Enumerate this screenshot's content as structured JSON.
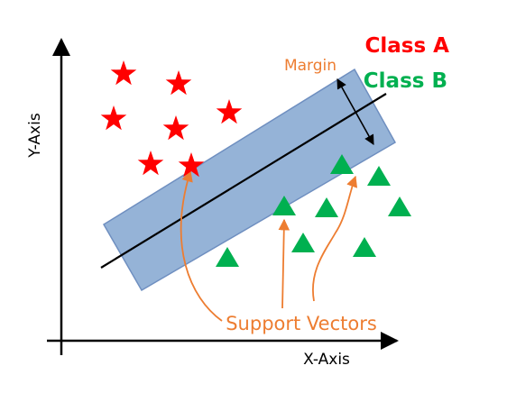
{
  "labels": {
    "y_axis": "Y-Axis",
    "x_axis": "X-Axis",
    "margin": "Margin",
    "class_a": "Class A",
    "class_b": "Class B",
    "support_vectors": "Support Vectors"
  },
  "colors": {
    "class_a": "#ff0000",
    "class_b": "#00b050",
    "margin_band": "#95b3d7",
    "margin_band_stroke": "#6f8fc0",
    "annotation": "#ed7d31",
    "axis": "#000000"
  },
  "icons": {
    "class_a_marker": "star-icon",
    "class_b_marker": "triangle-icon"
  }
}
